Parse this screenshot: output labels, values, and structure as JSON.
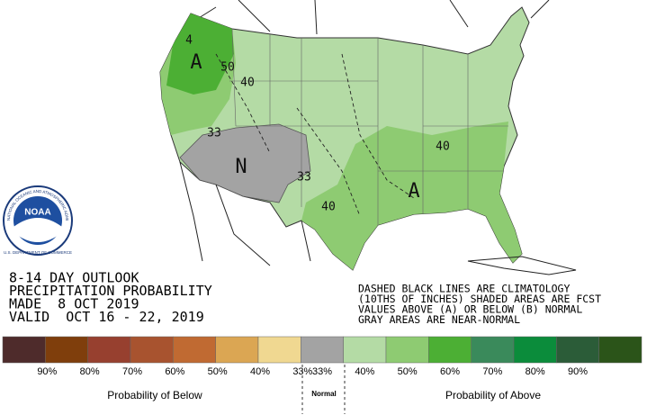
{
  "title": [
    "8-14 DAY OUTLOOK",
    "PRECIPITATION PROBABILITY",
    "MADE  8 OCT 2019",
    "VALID  OCT 16 - 22, 2019"
  ],
  "notes": [
    "DASHED BLACK LINES ARE CLIMATOLOGY",
    "(10THS OF INCHES) SHADED AREAS ARE FCST",
    "VALUES ABOVE (A) OR BELOW (B) NORMAL",
    "GRAY AREAS ARE NEAR-NORMAL"
  ],
  "map_labels": [
    "A",
    "50",
    "40",
    "4",
    "33",
    "N",
    "33",
    "40",
    "40",
    "A"
  ],
  "logo": {
    "text": "NOAA",
    "ring": "NATIONAL OCEANIC AND ATMOSPHERIC ADMINISTRATION",
    "dept": "U.S. DEPARTMENT OF COMMERCE"
  },
  "legend": {
    "colors": [
      "#4e2b2b",
      "#7f3e0c",
      "#97402f",
      "#a8532f",
      "#c06a32",
      "#dba653",
      "#f0d891",
      "#a3a3a3",
      "#b4dba5",
      "#8ecb72",
      "#4caf34",
      "#3a8a5b",
      "#0b8c3b",
      "#2b5c38",
      "#2b5419"
    ],
    "labels": [
      "90%",
      "80%",
      "70%",
      "60%",
      "50%",
      "40%",
      "33%",
      "33%",
      "40%",
      "50%",
      "60%",
      "70%",
      "80%",
      "90%"
    ],
    "below": "Probability of Below",
    "normal": "Normal",
    "above": "Probability of Above"
  }
}
